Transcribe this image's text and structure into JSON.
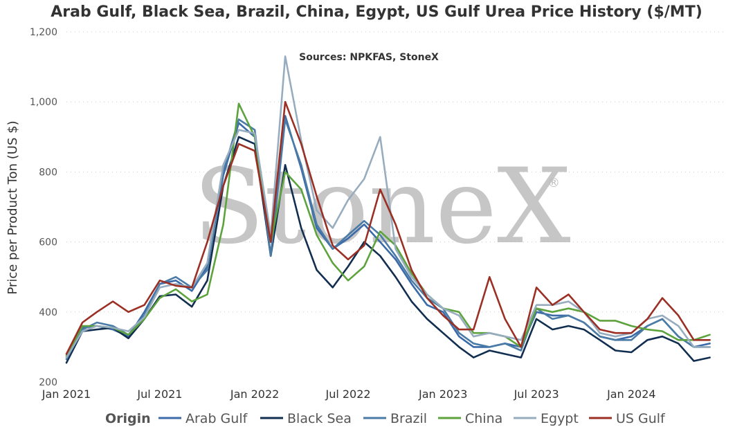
{
  "chart_data": {
    "type": "line",
    "title": "Arab Gulf, Black Sea, Brazil, China, Egypt, US Gulf Urea Price History ($/MT)",
    "subtitle": "Sources: NPKFAS, StoneX",
    "watermark": "StoneX",
    "watermark_mark": "®",
    "ylabel": "Price per Product Ton (US $)",
    "xlabel": "",
    "ylim": [
      200,
      1200
    ],
    "yticks": [
      200,
      400,
      600,
      800,
      1000,
      1200
    ],
    "ytick_labels": [
      "200",
      "400",
      "600",
      "800",
      "1,000",
      "1,200"
    ],
    "xlim": [
      "2021-01-01",
      "2024-07-01"
    ],
    "xticks": [
      "2021-01-01",
      "2021-07-01",
      "2022-01-01",
      "2022-07-01",
      "2023-01-01",
      "2023-07-01",
      "2024-01-01"
    ],
    "xtick_labels": [
      "Jan 2021",
      "Jul 2021",
      "Jan 2022",
      "Jul 2022",
      "Jan 2023",
      "Jul 2023",
      "Jan 2024"
    ],
    "grid": "horizontal dotted",
    "legend_title": "Origin",
    "legend_position": "bottom",
    "x": [
      "2021-01-01",
      "2021-02-01",
      "2021-03-01",
      "2021-04-01",
      "2021-05-01",
      "2021-06-01",
      "2021-07-01",
      "2021-08-01",
      "2021-09-01",
      "2021-10-01",
      "2021-11-01",
      "2021-12-01",
      "2022-01-01",
      "2022-02-01",
      "2022-03-01",
      "2022-04-01",
      "2022-05-01",
      "2022-06-01",
      "2022-07-01",
      "2022-08-01",
      "2022-09-01",
      "2022-10-01",
      "2022-11-01",
      "2022-12-01",
      "2023-01-01",
      "2023-02-01",
      "2023-03-01",
      "2023-04-01",
      "2023-05-01",
      "2023-06-01",
      "2023-07-01",
      "2023-08-01",
      "2023-09-01",
      "2023-10-01",
      "2023-11-01",
      "2023-12-01",
      "2024-01-01",
      "2024-02-01",
      "2024-03-01",
      "2024-04-01",
      "2024-05-01",
      "2024-06-01"
    ],
    "series": [
      {
        "name": "Arab Gulf",
        "color": "#3b6aa8",
        "values": [
          270,
          355,
          360,
          350,
          330,
          400,
          480,
          490,
          460,
          530,
          790,
          940,
          900,
          560,
          960,
          810,
          640,
          580,
          610,
          650,
          600,
          550,
          480,
          420,
          400,
          330,
          300,
          300,
          310,
          300,
          400,
          390,
          390,
          370,
          330,
          320,
          330,
          360,
          380,
          330,
          300,
          310
        ]
      },
      {
        "name": "Black Sea",
        "color": "#112e51",
        "values": [
          255,
          345,
          350,
          355,
          325,
          380,
          445,
          450,
          415,
          490,
          760,
          900,
          880,
          560,
          820,
          640,
          520,
          470,
          530,
          600,
          560,
          500,
          430,
          380,
          340,
          300,
          270,
          290,
          280,
          270,
          380,
          350,
          360,
          350,
          320,
          290,
          285,
          320,
          330,
          310,
          260,
          270
        ]
      },
      {
        "name": "Brazil",
        "color": "#4a7ba6",
        "values": [
          265,
          350,
          370,
          360,
          335,
          390,
          480,
          500,
          470,
          520,
          800,
          950,
          920,
          560,
          950,
          820,
          650,
          580,
          620,
          660,
          620,
          560,
          490,
          440,
          410,
          340,
          310,
          300,
          310,
          290,
          410,
          380,
          390,
          370,
          330,
          320,
          320,
          360,
          380,
          330,
          300,
          300
        ]
      },
      {
        "name": "China",
        "color": "#5da33d",
        "values": [
          275,
          360,
          360,
          355,
          335,
          380,
          440,
          465,
          430,
          450,
          650,
          995,
          900,
          600,
          800,
          750,
          620,
          540,
          490,
          530,
          630,
          590,
          510,
          450,
          410,
          400,
          340,
          340,
          330,
          300,
          410,
          400,
          410,
          400,
          375,
          375,
          360,
          350,
          345,
          320,
          320,
          335
        ]
      },
      {
        "name": "Egypt",
        "color": "#97adbf",
        "values": [
          270,
          345,
          360,
          355,
          345,
          385,
          470,
          480,
          470,
          540,
          820,
          920,
          910,
          620,
          1130,
          890,
          690,
          640,
          720,
          780,
          900,
          580,
          500,
          450,
          410,
          390,
          330,
          340,
          330,
          320,
          420,
          420,
          430,
          400,
          340,
          330,
          340,
          380,
          390,
          360,
          300,
          300
        ]
      },
      {
        "name": "US Gulf",
        "color": "#9b2f24",
        "values": [
          280,
          370,
          400,
          430,
          400,
          420,
          490,
          475,
          470,
          600,
          760,
          880,
          860,
          600,
          1000,
          880,
          730,
          590,
          550,
          590,
          750,
          650,
          520,
          440,
          390,
          350,
          350,
          500,
          380,
          300,
          470,
          420,
          450,
          400,
          350,
          340,
          340,
          380,
          440,
          390,
          320,
          320
        ]
      }
    ]
  }
}
